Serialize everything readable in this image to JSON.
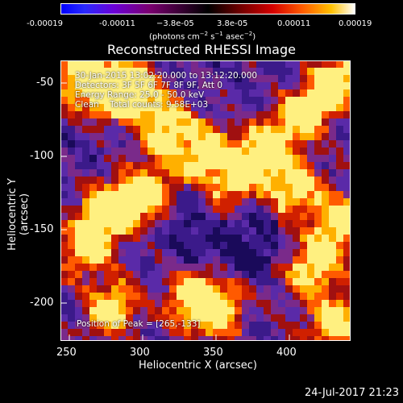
{
  "colorbar": {
    "ticks": [
      "-0.00019",
      "-0.00011",
      "−3.8e-05",
      "3.8e-05",
      "0.00011",
      "0.00019"
    ],
    "units_prefix": "(photons cm",
    "units_sup1": "−2",
    "units_mid": " s",
    "units_sup2": "−1",
    "units_mid2": " asec",
    "units_sup3": "−2",
    "units_suffix": ")"
  },
  "title": "Reconstructed RHESSI Image",
  "info": {
    "line1": "30-Jan-2015 13:02:20.000 to 13:12:20.000",
    "line2": "Detectors: 3F 5F 6F 7F 8F 9F, Att 0",
    "line3": "Energy Range: 25.0 - 50.0 keV",
    "line4": "Clean    Total counts: 9.58E+03"
  },
  "peak": "Position of Peak = [265,-133]",
  "axes": {
    "xlabel": "Heliocentric X (arcsec)",
    "ylabel": "Heliocentric Y (arcsec)",
    "xticks": [
      "250",
      "300",
      "350",
      "400"
    ],
    "yticks": [
      "-50",
      "-100",
      "-150",
      "-200"
    ]
  },
  "date": "24-Jul-2017 21:23"
}
